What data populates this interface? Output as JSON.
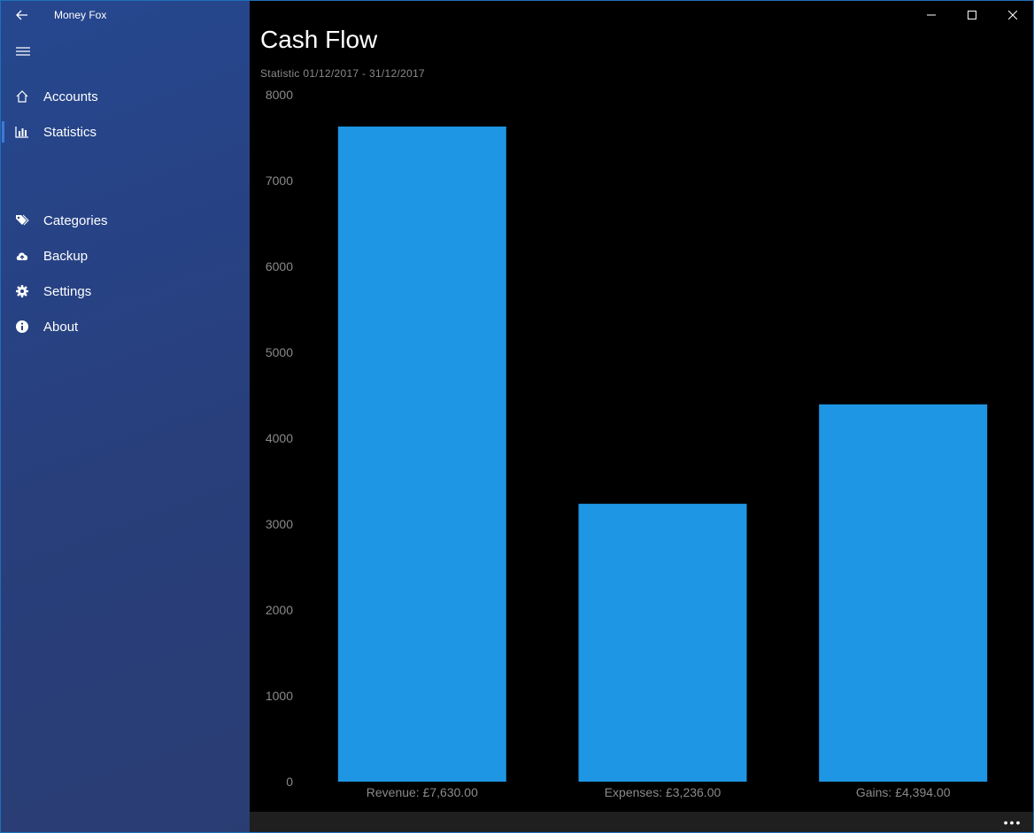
{
  "app": {
    "title": "Money Fox"
  },
  "sidebar": {
    "items": [
      {
        "label": "Accounts",
        "icon": "home-icon"
      },
      {
        "label": "Statistics",
        "icon": "bar-chart-icon"
      },
      {
        "label": "Categories",
        "icon": "tag-icon"
      },
      {
        "label": "Backup",
        "icon": "cloud-upload-icon"
      },
      {
        "label": "Settings",
        "icon": "gear-icon"
      },
      {
        "label": "About",
        "icon": "info-icon"
      }
    ],
    "selected": "Statistics"
  },
  "main": {
    "title": "Cash Flow",
    "subtitle": "Statistic 01/12/2017 - 31/12/2017"
  },
  "colors": {
    "sidebar_bg": "#283f7c",
    "bar": "#1e96e3",
    "axis_text": "#8a8a8a"
  },
  "chart_data": {
    "type": "bar",
    "categories": [
      "Revenue: £7,630.00",
      "Expenses: £3,236.00",
      "Gains: £4,394.00"
    ],
    "values": [
      7630,
      3236,
      4394
    ],
    "title": "",
    "xlabel": "",
    "ylabel": "",
    "ylim": [
      0,
      8000
    ],
    "yticks": [
      0,
      1000,
      2000,
      3000,
      4000,
      5000,
      6000,
      7000,
      8000
    ],
    "grid": false,
    "legend": "none"
  }
}
